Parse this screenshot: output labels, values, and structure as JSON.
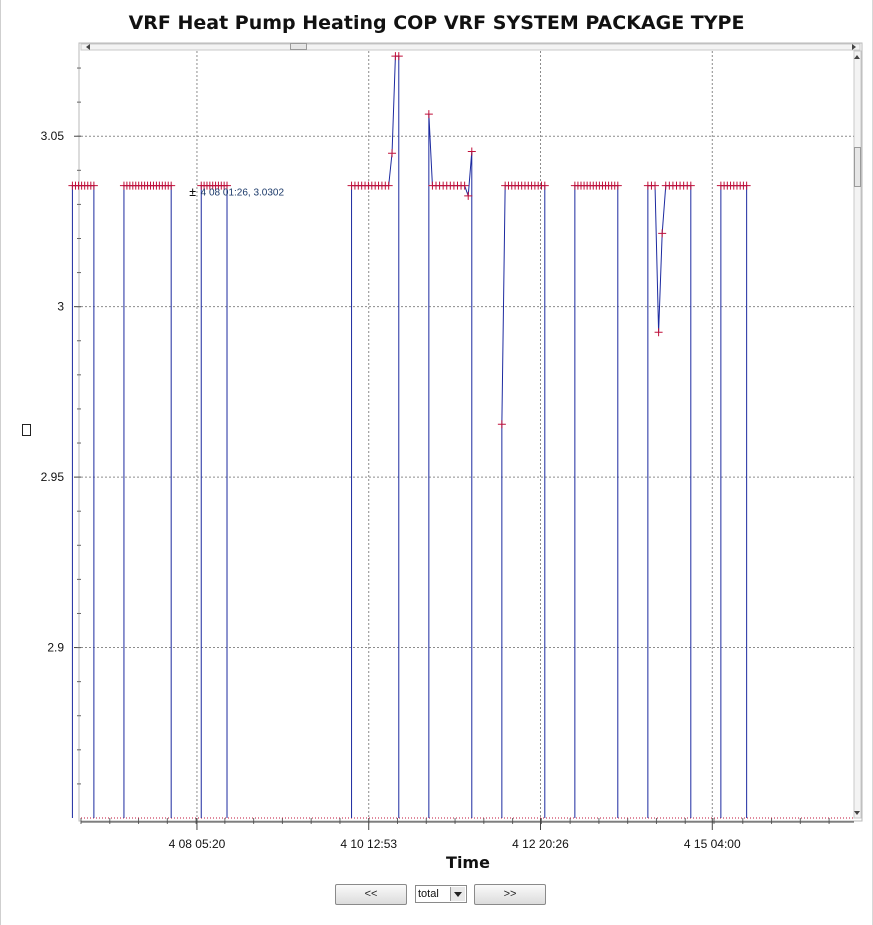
{
  "chart_data": {
    "type": "line",
    "title": "VRF Heat Pump Heating COP  VRF SYSTEM PACKAGE TYPE",
    "xlabel": "Time",
    "ylabel_box": "",
    "ylim": [
      2.85,
      3.075
    ],
    "yticks": [
      2.9,
      2.95,
      3,
      3.05
    ],
    "ytick_labels": [
      "2.9",
      "2.95",
      "3",
      "3.05"
    ],
    "xlim_days": [
      0,
      9
    ],
    "xtick_labels": [
      {
        "label": "4 08 05:20",
        "t": 1.35
      },
      {
        "label": "4 10 12:53",
        "t": 3.35
      },
      {
        "label": "4 12 20:26",
        "t": 5.35
      },
      {
        "label": "4 15 04:00",
        "t": 7.35
      }
    ],
    "minor_tick_step_days": 0.335,
    "grid": true,
    "line_color": "#1c2aa0",
    "marker_color": "#c0103a",
    "baseline_color": "#c0103a",
    "annotation": {
      "text": "4 08 01:26, 3.0302",
      "t": 1.3,
      "y": 3.0338
    },
    "segments": [
      {
        "start": -0.1,
        "end": 0.15,
        "values": [
          3.0355,
          3.0355,
          3.0355,
          3.0355,
          3.0355,
          3.0355,
          3.0355,
          3.0355
        ]
      },
      {
        "start": 0.5,
        "end": 1.05,
        "values": [
          3.0355,
          3.0355,
          3.0355,
          3.0355,
          3.0355,
          3.0355,
          3.0355,
          3.0355,
          3.0355,
          3.0355,
          3.0355,
          3.0355,
          3.0355,
          3.0355,
          3.0355,
          3.0355,
          3.0355
        ]
      },
      {
        "start": 1.4,
        "end": 1.7,
        "values": [
          3.0355,
          3.0355,
          3.0355,
          3.0355,
          3.0355,
          3.0355,
          3.0355,
          3.0355,
          3.0355,
          3.0355
        ]
      },
      {
        "start": 3.15,
        "end": 3.7,
        "values": [
          3.0355,
          3.0355,
          3.0355,
          3.0355,
          3.0355,
          3.0355,
          3.0355,
          3.0355,
          3.0355,
          3.0355,
          3.0355,
          3.0355,
          3.045,
          3.0735,
          3.0735
        ]
      },
      {
        "start": 4.05,
        "end": 4.55,
        "values": [
          3.0565,
          3.0355,
          3.0355,
          3.0355,
          3.0355,
          3.0355,
          3.0355,
          3.0355,
          3.0355,
          3.0355,
          3.0355,
          3.0325,
          3.0455
        ]
      },
      {
        "start": 4.9,
        "end": 5.4,
        "values": [
          2.9655,
          3.0355,
          3.0355,
          3.0355,
          3.0355,
          3.0355,
          3.0355,
          3.0355,
          3.0355,
          3.0355,
          3.0355,
          3.0355,
          3.0355,
          3.0355
        ]
      },
      {
        "start": 5.75,
        "end": 6.25,
        "values": [
          3.0355,
          3.0355,
          3.0355,
          3.0355,
          3.0355,
          3.0355,
          3.0355,
          3.0355,
          3.0355,
          3.0355,
          3.0355,
          3.0355,
          3.0355,
          3.0355,
          3.0355
        ]
      },
      {
        "start": 6.6,
        "end": 7.1,
        "values": [
          3.0355,
          3.0355,
          3.0355,
          2.9925,
          3.0215,
          3.0355,
          3.0355,
          3.0355,
          3.0355,
          3.0355,
          3.0355,
          3.0355,
          3.0355
        ]
      },
      {
        "start": 7.45,
        "end": 7.75,
        "values": [
          3.0355,
          3.0355,
          3.0355,
          3.0355,
          3.0355,
          3.0355,
          3.0355,
          3.0355,
          3.0355
        ]
      }
    ]
  },
  "controls": {
    "prev_label": "<<",
    "next_label": ">>",
    "select_value": "total"
  }
}
